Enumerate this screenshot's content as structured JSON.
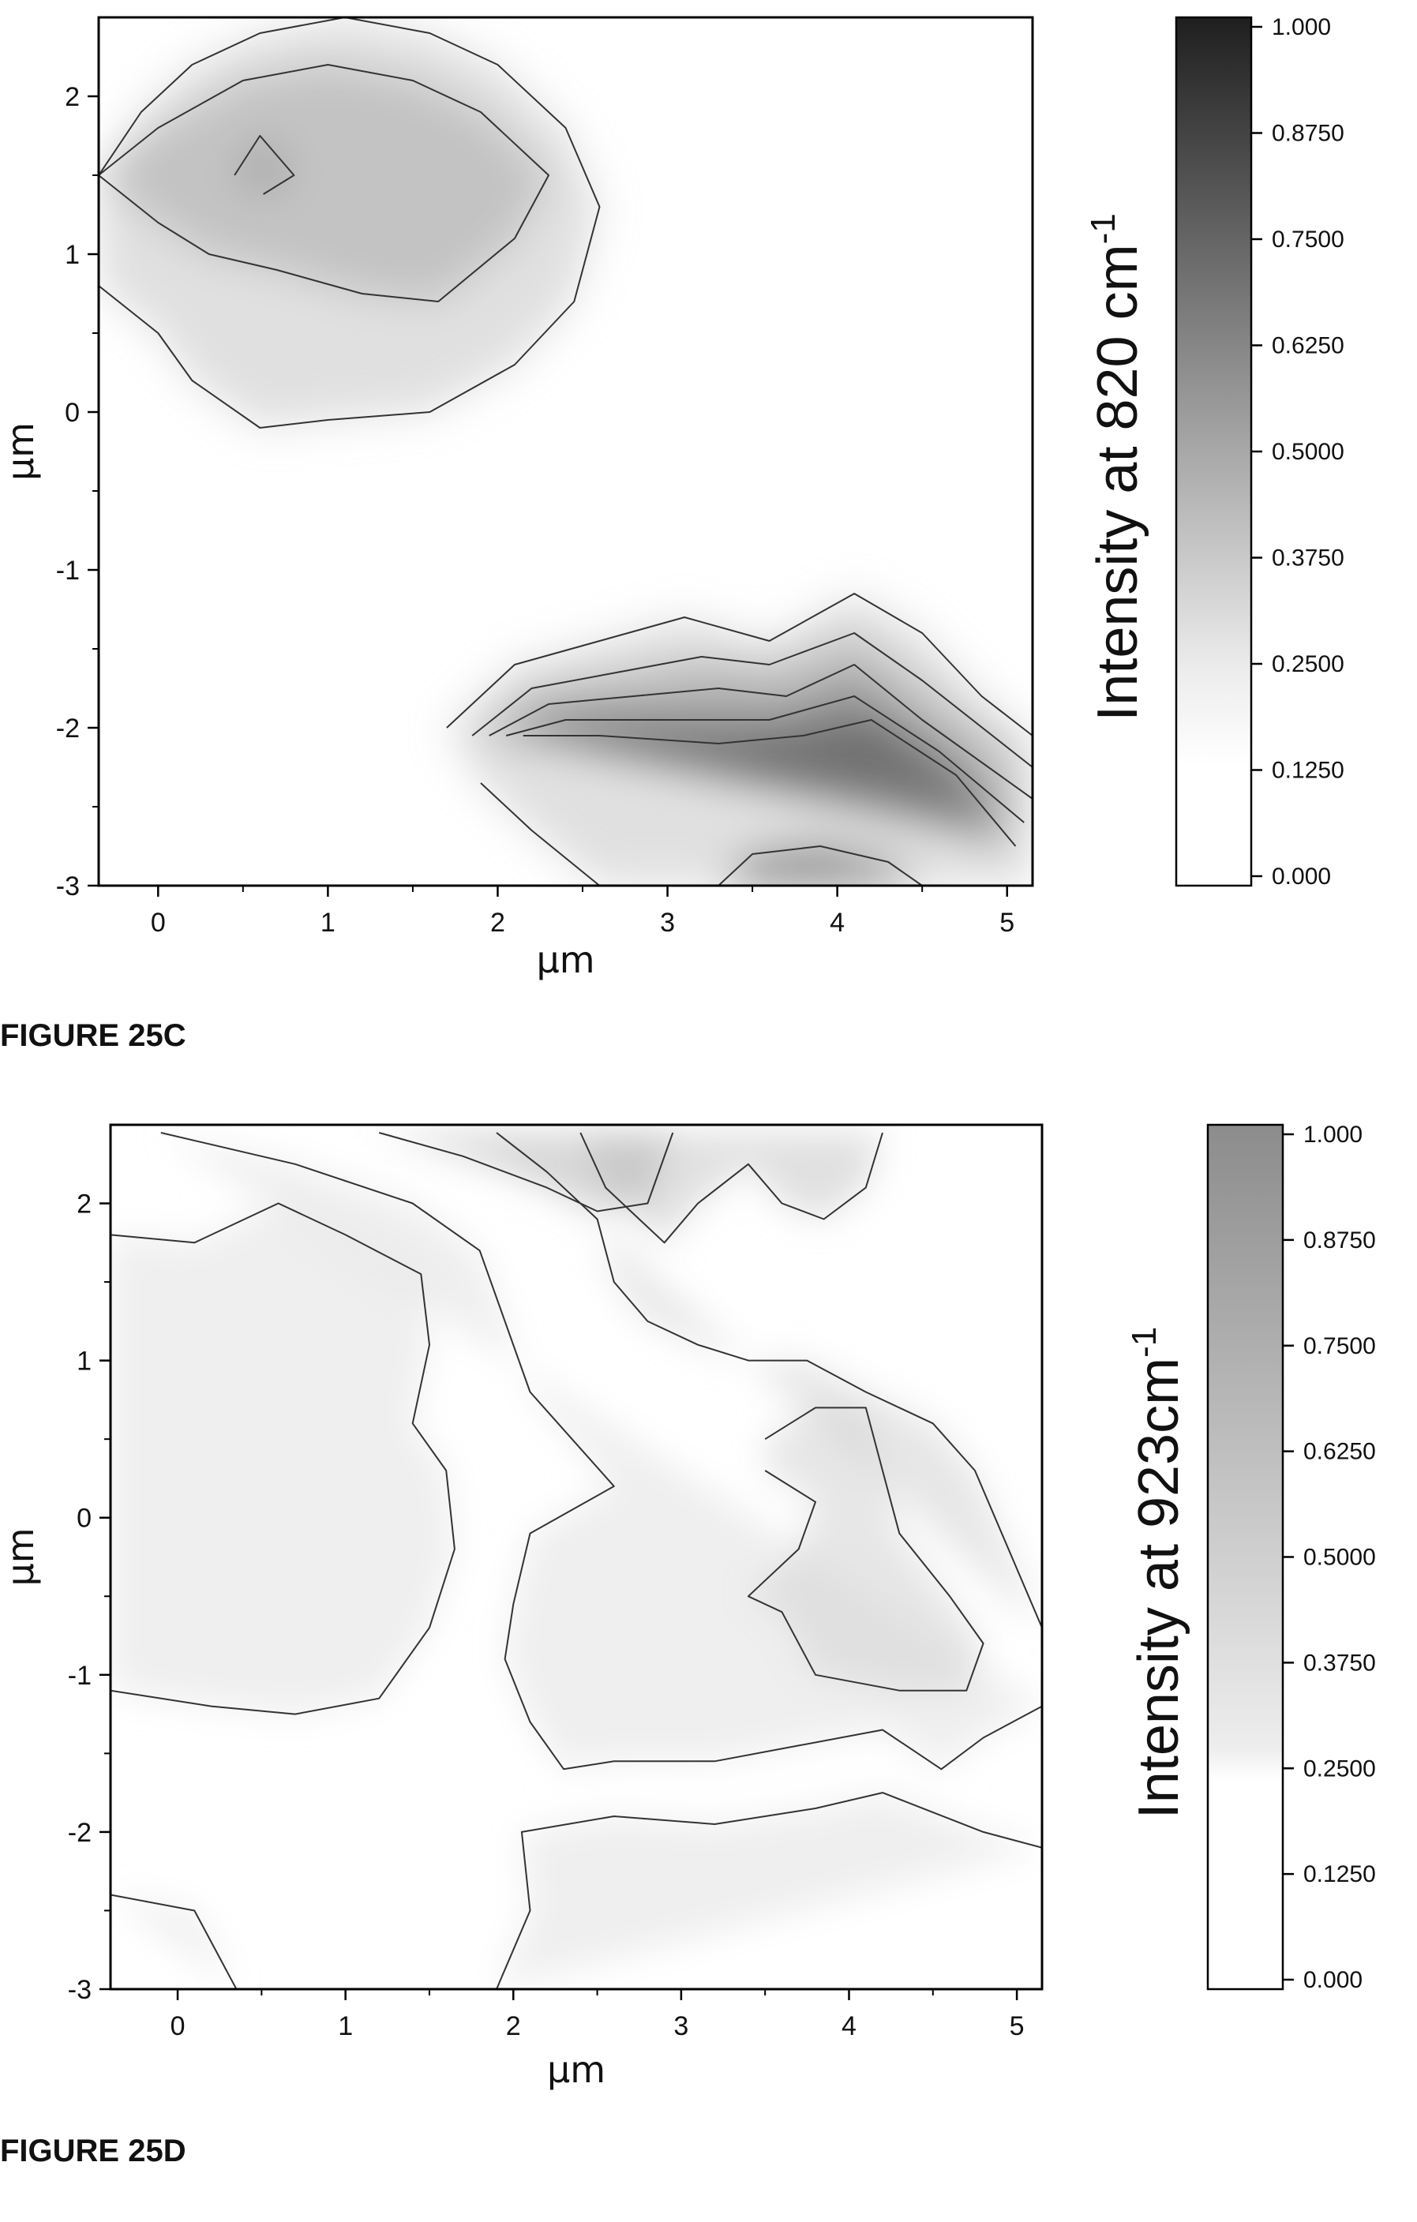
{
  "chart_data": [
    {
      "type": "heatmap",
      "caption": "FIGURE 25C",
      "xlabel": "µm",
      "ylabel": "µm",
      "xlim": [
        -0.35,
        5.15
      ],
      "ylim": [
        -3.0,
        2.5
      ],
      "x_ticks": [
        "0",
        "1",
        "2",
        "3",
        "4",
        "5"
      ],
      "y_ticks": [
        "2",
        "1",
        "0",
        "-1",
        "-2",
        "-3"
      ],
      "colorbar": {
        "title": "Intensity at 820 cm",
        "title_sup": "-1",
        "range": [
          0,
          1
        ],
        "ticks": [
          "1.000",
          "0.8750",
          "0.7500",
          "0.6250",
          "0.5000",
          "0.3750",
          "0.2500",
          "0.1250",
          "0.000"
        ],
        "color_low": "#ffffff",
        "color_high": "#1f1f1f"
      },
      "contours": [
        {
          "level": 0.25,
          "points": [
            [
              -0.35,
              1.5
            ],
            [
              -0.1,
              1.9
            ],
            [
              0.2,
              2.2
            ],
            [
              0.6,
              2.4
            ],
            [
              1.1,
              2.5
            ],
            [
              1.6,
              2.4
            ],
            [
              2.0,
              2.2
            ],
            [
              2.4,
              1.8
            ],
            [
              2.6,
              1.3
            ],
            [
              2.45,
              0.7
            ],
            [
              2.1,
              0.3
            ],
            [
              1.6,
              0.0
            ],
            [
              1.0,
              -0.05
            ],
            [
              0.6,
              -0.1
            ],
            [
              0.2,
              0.2
            ],
            [
              0.0,
              0.5
            ],
            [
              -0.35,
              0.8
            ]
          ]
        },
        {
          "level": 0.375,
          "points": [
            [
              -0.35,
              1.5
            ],
            [
              0.0,
              1.8
            ],
            [
              0.5,
              2.1
            ],
            [
              1.0,
              2.2
            ],
            [
              1.5,
              2.1
            ],
            [
              1.9,
              1.9
            ],
            [
              2.3,
              1.5
            ],
            [
              2.1,
              1.1
            ],
            [
              1.65,
              0.7
            ],
            [
              1.2,
              0.75
            ],
            [
              0.7,
              0.9
            ],
            [
              0.3,
              1.0
            ],
            [
              0.0,
              1.2
            ],
            [
              -0.35,
              1.5
            ]
          ]
        },
        {
          "level": 0.5,
          "points": [
            [
              0.45,
              1.5
            ],
            [
              0.6,
              1.75
            ],
            [
              0.8,
              1.5
            ],
            [
              0.62,
              1.38
            ]
          ]
        },
        {
          "level": 0.25,
          "points": [
            [
              1.7,
              -2.0
            ],
            [
              2.1,
              -1.6
            ],
            [
              2.6,
              -1.45
            ],
            [
              3.1,
              -1.3
            ],
            [
              3.6,
              -1.45
            ],
            [
              4.1,
              -1.15
            ],
            [
              4.5,
              -1.4
            ],
            [
              4.85,
              -1.8
            ],
            [
              5.15,
              -2.05
            ],
            [
              5.15,
              -3.0
            ],
            [
              2.6,
              -3.0
            ],
            [
              2.2,
              -2.65
            ],
            [
              1.9,
              -2.35
            ]
          ]
        },
        {
          "level": 0.375,
          "points": [
            [
              1.85,
              -2.05
            ],
            [
              2.2,
              -1.75
            ],
            [
              2.7,
              -1.65
            ],
            [
              3.2,
              -1.55
            ],
            [
              3.6,
              -1.6
            ],
            [
              4.1,
              -1.4
            ],
            [
              4.5,
              -1.7
            ],
            [
              5.15,
              -2.25
            ]
          ]
        },
        {
          "level": 0.5,
          "points": [
            [
              1.95,
              -2.05
            ],
            [
              2.3,
              -1.85
            ],
            [
              2.8,
              -1.8
            ],
            [
              3.3,
              -1.75
            ],
            [
              3.7,
              -1.8
            ],
            [
              4.1,
              -1.6
            ],
            [
              4.5,
              -1.95
            ],
            [
              5.15,
              -2.45
            ]
          ]
        },
        {
          "level": 0.625,
          "points": [
            [
              2.05,
              -2.05
            ],
            [
              2.4,
              -1.95
            ],
            [
              3.0,
              -1.95
            ],
            [
              3.6,
              -1.95
            ],
            [
              4.1,
              -1.8
            ],
            [
              4.6,
              -2.15
            ],
            [
              5.1,
              -2.6
            ]
          ]
        },
        {
          "level": 0.75,
          "points": [
            [
              2.15,
              -2.05
            ],
            [
              2.6,
              -2.05
            ],
            [
              3.3,
              -2.1
            ],
            [
              3.8,
              -2.05
            ],
            [
              4.2,
              -1.95
            ],
            [
              4.7,
              -2.3
            ],
            [
              5.05,
              -2.75
            ]
          ]
        },
        {
          "level": 0.875,
          "points": [
            [
              3.3,
              -3.0
            ],
            [
              3.5,
              -2.8
            ],
            [
              3.9,
              -2.75
            ],
            [
              4.3,
              -2.85
            ],
            [
              4.5,
              -3.0
            ]
          ]
        }
      ]
    },
    {
      "type": "heatmap",
      "caption": "FIGURE 25D",
      "xlabel": "µm",
      "ylabel": "µm",
      "xlim": [
        -0.4,
        5.15
      ],
      "ylim": [
        -3.0,
        2.5
      ],
      "x_ticks": [
        "0",
        "1",
        "2",
        "3",
        "4",
        "5"
      ],
      "y_ticks": [
        "2",
        "1",
        "0",
        "-1",
        "-2",
        "-3"
      ],
      "colorbar": {
        "title": "Intensity at 923cm",
        "title_sup": "-1",
        "range": [
          0,
          1
        ],
        "ticks": [
          "1.000",
          "0.8750",
          "0.7500",
          "0.6250",
          "0.5000",
          "0.3750",
          "0.2500",
          "0.1250",
          "0.000"
        ],
        "color_low": "#ffffff",
        "color_high": "#8c8c8c"
      },
      "contours": [
        {
          "level": 0.25,
          "points": [
            [
              -0.4,
              1.8
            ],
            [
              0.1,
              1.75
            ],
            [
              0.6,
              2.0
            ],
            [
              1.0,
              1.8
            ],
            [
              1.45,
              1.55
            ],
            [
              1.5,
              1.1
            ],
            [
              1.4,
              0.6
            ],
            [
              1.6,
              0.3
            ],
            [
              1.65,
              -0.2
            ],
            [
              1.5,
              -0.7
            ],
            [
              1.2,
              -1.15
            ],
            [
              0.7,
              -1.25
            ],
            [
              0.2,
              -1.2
            ],
            [
              -0.4,
              -1.1
            ]
          ]
        },
        {
          "level": 0.25,
          "points": [
            [
              -0.1,
              2.45
            ],
            [
              0.7,
              2.25
            ],
            [
              1.4,
              2.0
            ],
            [
              1.8,
              1.7
            ],
            [
              1.95,
              1.25
            ],
            [
              2.1,
              0.8
            ],
            [
              2.6,
              0.2
            ],
            [
              2.1,
              -0.1
            ],
            [
              2.0,
              -0.55
            ],
            [
              1.95,
              -0.9
            ],
            [
              2.1,
              -1.3
            ],
            [
              2.3,
              -1.6
            ],
            [
              2.6,
              -1.55
            ],
            [
              3.2,
              -1.55
            ],
            [
              3.7,
              -1.45
            ],
            [
              4.2,
              -1.35
            ],
            [
              4.55,
              -1.6
            ],
            [
              4.8,
              -1.4
            ],
            [
              5.15,
              -1.2
            ]
          ]
        },
        {
          "level": 0.375,
          "points": [
            [
              1.9,
              2.45
            ],
            [
              2.2,
              2.2
            ],
            [
              2.5,
              1.9
            ],
            [
              2.6,
              1.5
            ],
            [
              2.8,
              1.25
            ],
            [
              3.1,
              1.1
            ],
            [
              3.4,
              1.0
            ],
            [
              3.75,
              1.0
            ],
            [
              4.1,
              0.8
            ],
            [
              4.5,
              0.6
            ],
            [
              4.75,
              0.3
            ],
            [
              5.15,
              -0.7
            ]
          ]
        },
        {
          "level": 0.375,
          "points": [
            [
              3.5,
              0.5
            ],
            [
              3.8,
              0.7
            ],
            [
              4.1,
              0.7
            ],
            [
              4.2,
              0.3
            ],
            [
              4.3,
              -0.1
            ],
            [
              4.6,
              -0.5
            ],
            [
              4.8,
              -0.8
            ],
            [
              4.7,
              -1.1
            ],
            [
              4.3,
              -1.1
            ],
            [
              3.8,
              -1.0
            ],
            [
              3.6,
              -0.6
            ],
            [
              3.4,
              -0.5
            ],
            [
              3.7,
              -0.2
            ],
            [
              3.8,
              0.1
            ],
            [
              3.5,
              0.3
            ]
          ]
        },
        {
          "level": 0.5,
          "points": [
            [
              2.4,
              2.45
            ],
            [
              2.55,
              2.1
            ],
            [
              2.75,
              1.9
            ],
            [
              2.9,
              1.75
            ],
            [
              3.1,
              2.0
            ],
            [
              3.4,
              2.25
            ],
            [
              3.6,
              2.0
            ],
            [
              3.85,
              1.9
            ],
            [
              4.1,
              2.1
            ],
            [
              4.2,
              2.45
            ]
          ]
        },
        {
          "level": 0.625,
          "points": [
            [
              1.2,
              2.45
            ],
            [
              1.7,
              2.3
            ],
            [
              2.2,
              2.1
            ],
            [
              2.5,
              1.95
            ],
            [
              2.8,
              2.0
            ],
            [
              2.95,
              2.45
            ]
          ]
        },
        {
          "level": 0.25,
          "points": [
            [
              1.9,
              -3.0
            ],
            [
              2.1,
              -2.5
            ],
            [
              2.05,
              -2.0
            ],
            [
              2.6,
              -1.9
            ],
            [
              3.2,
              -1.95
            ],
            [
              3.8,
              -1.85
            ],
            [
              4.2,
              -1.75
            ],
            [
              4.8,
              -2.0
            ],
            [
              5.15,
              -2.1
            ]
          ]
        },
        {
          "level": 0.25,
          "points": [
            [
              -0.4,
              -2.4
            ],
            [
              0.1,
              -2.5
            ],
            [
              0.35,
              -3.0
            ]
          ]
        }
      ]
    }
  ]
}
